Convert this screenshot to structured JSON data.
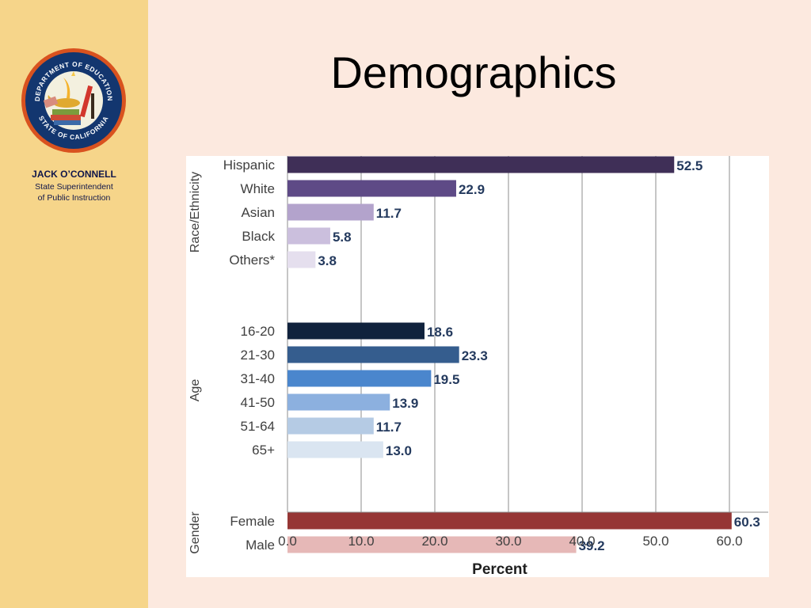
{
  "slide": {
    "title": "Demographics",
    "sidebar_name": "JACK O’CONNELL",
    "sidebar_role_line1": "State Superintendent",
    "sidebar_role_line2": "of Public Instruction",
    "seal_text_top": "DEPARTMENT OF EDUCATION",
    "seal_text_bottom": "STATE OF CALIFORNIA"
  },
  "chart_data": {
    "type": "bar",
    "orientation": "horizontal",
    "xlabel": "Percent",
    "xlim": [
      0,
      65
    ],
    "xticks": [
      "0.0",
      "10.0",
      "20.0",
      "30.0",
      "40.0",
      "50.0",
      "60.0"
    ],
    "grid": "vertical",
    "groups": [
      {
        "name": "Race/Ethnicity",
        "bars": [
          {
            "label": "Hispanic",
            "value": 52.5,
            "value_label": "52.5",
            "color": "#3f2f57"
          },
          {
            "label": "White",
            "value": 22.9,
            "value_label": "22.9",
            "color": "#5e4a86"
          },
          {
            "label": "Asian",
            "value": 11.7,
            "value_label": "11.7",
            "color": "#b3a3cc"
          },
          {
            "label": "Black",
            "value": 5.8,
            "value_label": "5.8",
            "color": "#cbbfdd"
          },
          {
            "label": "Others*",
            "value": 3.8,
            "value_label": "3.8",
            "color": "#e5dfee"
          }
        ]
      },
      {
        "name": "Age",
        "bars": [
          {
            "label": "16-20",
            "value": 18.6,
            "value_label": "18.6",
            "color": "#10223d"
          },
          {
            "label": "21-30",
            "value": 23.3,
            "value_label": "23.3",
            "color": "#355d8e"
          },
          {
            "label": "31-40",
            "value": 19.5,
            "value_label": "19.5",
            "color": "#4a86cd"
          },
          {
            "label": "41-50",
            "value": 13.9,
            "value_label": "13.9",
            "color": "#8cb0df"
          },
          {
            "label": "51-64",
            "value": 11.7,
            "value_label": "11.7",
            "color": "#b5cbe4"
          },
          {
            "label": "65+",
            "value": 13.0,
            "value_label": "13.0",
            "color": "#dae5f1"
          }
        ]
      },
      {
        "name": "Gender",
        "bars": [
          {
            "label": "Female",
            "value": 60.3,
            "value_label": "60.3",
            "color": "#963635"
          },
          {
            "label": "Male",
            "value": 39.2,
            "value_label": "39.2",
            "color": "#e6b8b7"
          }
        ]
      }
    ]
  }
}
